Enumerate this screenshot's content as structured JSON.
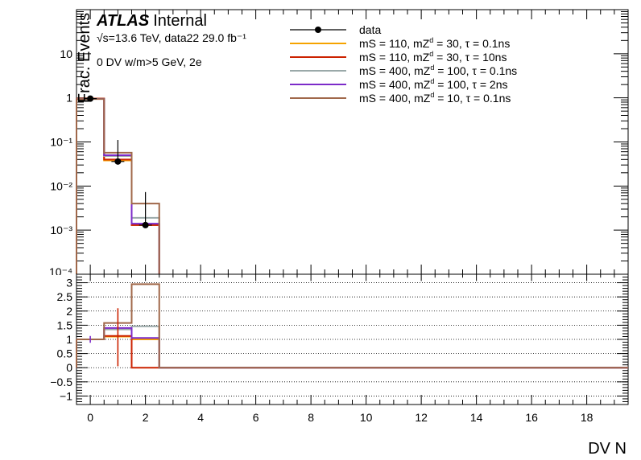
{
  "chart_data": [
    {
      "type": "line",
      "panel": "main",
      "ylabel": "Frac. Events",
      "yscale": "log",
      "ylim": [
        0.0001,
        100
      ],
      "xlim": [
        -0.5,
        19.5
      ],
      "y_tick_labels": [
        "10⁻⁴",
        "10⁻³",
        "10⁻²",
        "10⁻¹",
        "1",
        "10"
      ],
      "annotations": {
        "atlas": "ATLAS",
        "internal": "Internal",
        "energy": "√s=13.6 TeV, data22 29.0 fb⁻¹",
        "selection": "0 DV w/m>5 GeV, 2e"
      },
      "legend_position": "top-right",
      "data_points": {
        "name": "data",
        "x": [
          0,
          1,
          2
        ],
        "y": [
          0.96,
          0.036,
          0.0013
        ],
        "yerr_up": [
          0.05,
          0.075,
          0.006
        ],
        "yerr_down": [
          0.05,
          0.0001,
          0.0001
        ]
      },
      "series": [
        {
          "name": "mS = 110, mZ_d = 30, τ = 0.1ns",
          "color": "#f5a300",
          "bins": [
            0,
            1,
            2
          ],
          "values": [
            0.97,
            0.038,
            0.0013
          ]
        },
        {
          "name": "mS = 110, mZ_d = 30, τ = 10ns",
          "color": "#cc2200",
          "bins": [
            0,
            1,
            2
          ],
          "values": [
            0.96,
            0.04,
            0.0013
          ]
        },
        {
          "name": "mS = 400, mZ_d = 100, τ = 0.1ns",
          "color": "#9aa9a9",
          "bins": [
            0,
            1,
            2
          ],
          "values": [
            0.95,
            0.048,
            0.0019
          ]
        },
        {
          "name": "mS = 400, mZ_d = 100, τ = 2ns",
          "color": "#7c2bc9",
          "bins": [
            0,
            1,
            2
          ],
          "values": [
            0.95,
            0.05,
            0.0014
          ]
        },
        {
          "name": "mS = 400, mZ_d = 10, τ = 0.1ns",
          "color": "#a0684a",
          "bins": [
            0,
            1,
            2
          ],
          "values": [
            0.94,
            0.057,
            0.004
          ]
        }
      ]
    },
    {
      "type": "line",
      "panel": "ratio",
      "xlabel": "DV N",
      "ylim": [
        -1.3,
        3.3
      ],
      "xlim": [
        -0.5,
        19.5
      ],
      "y_ticks": [
        -1,
        -0.5,
        0,
        0.5,
        1,
        1.5,
        2,
        2.5,
        3
      ],
      "y_tick_labels": [
        "−1",
        "−0.5",
        "0",
        "0.5",
        "1",
        "1.5",
        "2",
        "2.5",
        "3"
      ],
      "x_ticks": [
        0,
        2,
        4,
        6,
        8,
        10,
        12,
        14,
        16,
        18
      ],
      "x_tick_labels": [
        "0",
        "2",
        "4",
        "6",
        "8",
        "10",
        "12",
        "14",
        "16",
        "18"
      ],
      "grid": "horizontal-dotted",
      "data_points": {
        "x": [
          0,
          1
        ],
        "y": [
          1,
          1.08
        ],
        "yerr_up": [
          0.12,
          1.02
        ],
        "yerr_down": [
          0.12,
          1.03
        ]
      },
      "series": [
        {
          "name": "mS = 110, mZ_d = 30, τ = 0.1ns",
          "color": "#f5a300",
          "values": [
            1.0,
            1.1,
            1.0
          ]
        },
        {
          "name": "mS = 110, mZ_d = 30, τ = 10ns",
          "color": "#cc2200",
          "values": [
            1.0,
            1.12,
            0
          ]
        },
        {
          "name": "mS = 400, mZ_d = 100, τ = 0.1ns",
          "color": "#9aa9a9",
          "values": [
            1.0,
            1.35,
            1.46
          ]
        },
        {
          "name": "mS = 400, mZ_d = 100, τ = 2ns",
          "color": "#7c2bc9",
          "values": [
            1.0,
            1.4,
            1.05
          ]
        },
        {
          "name": "mS = 400, mZ_d = 10, τ = 0.1ns",
          "color": "#a0684a",
          "values": [
            1.0,
            1.58,
            2.95
          ]
        }
      ]
    }
  ],
  "legend": {
    "data_label": "data",
    "entries": [
      {
        "text": "mS = 110, mZ",
        "sub": "d",
        "rest": " = 30, τ = 0.1ns",
        "color": "#f5a300"
      },
      {
        "text": "mS = 110, mZ",
        "sub": "d",
        "rest": " = 30, τ = 10ns",
        "color": "#cc2200"
      },
      {
        "text": "mS = 400, mZ",
        "sub": "d",
        "rest": " = 100, τ = 0.1ns",
        "color": "#9aa9a9"
      },
      {
        "text": "mS = 400, mZ",
        "sub": "d",
        "rest": " = 100, τ = 2ns",
        "color": "#7c2bc9"
      },
      {
        "text": "mS = 400, mZ",
        "sub": "d",
        "rest": " = 10, τ = 0.1ns",
        "color": "#a0684a"
      }
    ]
  }
}
